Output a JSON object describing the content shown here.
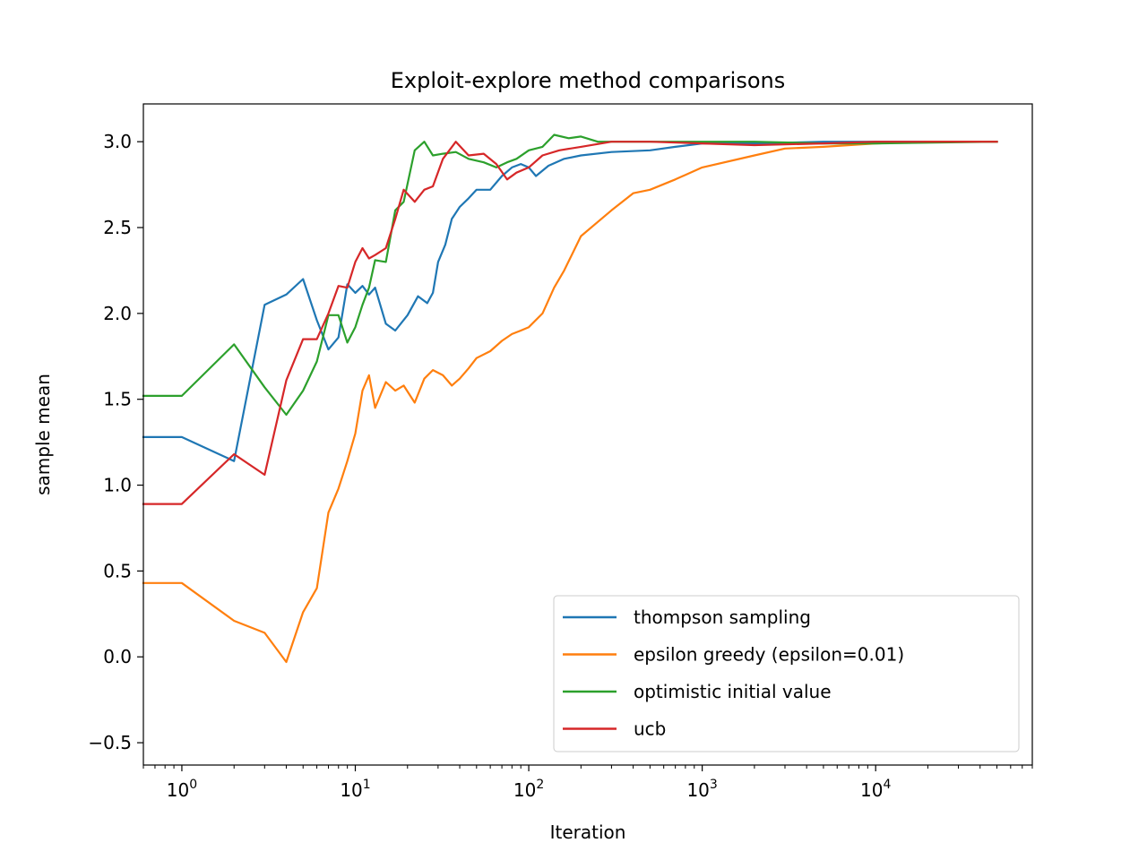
{
  "chart_data": {
    "type": "line",
    "title": "Exploit-explore method comparisons",
    "xlabel": "Iteration",
    "ylabel": "sample mean",
    "x_scale": "log",
    "xlim": [
      0.6,
      80000
    ],
    "ylim": [
      -0.63,
      3.22
    ],
    "x_ticks": [
      {
        "value": 1,
        "base": "10",
        "exp": "0"
      },
      {
        "value": 10,
        "base": "10",
        "exp": "1"
      },
      {
        "value": 100,
        "base": "10",
        "exp": "2"
      },
      {
        "value": 1000,
        "base": "10",
        "exp": "3"
      },
      {
        "value": 10000,
        "base": "10",
        "exp": "4"
      }
    ],
    "y_ticks": [
      {
        "value": -0.5,
        "label": "−0.5"
      },
      {
        "value": 0.0,
        "label": "0.0"
      },
      {
        "value": 0.5,
        "label": "0.5"
      },
      {
        "value": 1.0,
        "label": "1.0"
      },
      {
        "value": 1.5,
        "label": "1.5"
      },
      {
        "value": 2.0,
        "label": "2.0"
      },
      {
        "value": 2.5,
        "label": "2.5"
      },
      {
        "value": 3.0,
        "label": "3.0"
      }
    ],
    "grid": false,
    "legend_position": "lower right",
    "series": [
      {
        "name": "thompson sampling",
        "color": "#1f77b4",
        "points": [
          [
            0.6,
            1.28
          ],
          [
            1,
            1.28
          ],
          [
            2,
            1.14
          ],
          [
            3,
            2.05
          ],
          [
            4,
            2.11
          ],
          [
            5,
            2.2
          ],
          [
            6,
            1.96
          ],
          [
            7,
            1.79
          ],
          [
            8,
            1.86
          ],
          [
            9,
            2.17
          ],
          [
            10,
            2.12
          ],
          [
            11,
            2.16
          ],
          [
            12,
            2.11
          ],
          [
            13,
            2.15
          ],
          [
            15,
            1.94
          ],
          [
            17,
            1.9
          ],
          [
            20,
            1.99
          ],
          [
            23,
            2.1
          ],
          [
            26,
            2.06
          ],
          [
            28,
            2.12
          ],
          [
            30,
            2.3
          ],
          [
            33,
            2.4
          ],
          [
            36,
            2.55
          ],
          [
            40,
            2.62
          ],
          [
            45,
            2.67
          ],
          [
            50,
            2.72
          ],
          [
            60,
            2.72
          ],
          [
            70,
            2.8
          ],
          [
            80,
            2.85
          ],
          [
            90,
            2.87
          ],
          [
            100,
            2.85
          ],
          [
            110,
            2.8
          ],
          [
            130,
            2.86
          ],
          [
            160,
            2.9
          ],
          [
            200,
            2.92
          ],
          [
            300,
            2.94
          ],
          [
            500,
            2.95
          ],
          [
            700,
            2.97
          ],
          [
            1000,
            2.99
          ],
          [
            2000,
            2.99
          ],
          [
            5000,
            3.0
          ],
          [
            10000,
            3.0
          ],
          [
            50000,
            3.0
          ]
        ]
      },
      {
        "name": "epsilon greedy (epsilon=0.01)",
        "color": "#ff7f0e",
        "points": [
          [
            0.6,
            0.43
          ],
          [
            1,
            0.43
          ],
          [
            2,
            0.21
          ],
          [
            3,
            0.14
          ],
          [
            4,
            -0.03
          ],
          [
            5,
            0.26
          ],
          [
            6,
            0.4
          ],
          [
            7,
            0.84
          ],
          [
            8,
            0.98
          ],
          [
            9,
            1.14
          ],
          [
            10,
            1.3
          ],
          [
            11,
            1.55
          ],
          [
            12,
            1.64
          ],
          [
            13,
            1.45
          ],
          [
            15,
            1.6
          ],
          [
            17,
            1.55
          ],
          [
            19,
            1.58
          ],
          [
            22,
            1.48
          ],
          [
            25,
            1.62
          ],
          [
            28,
            1.67
          ],
          [
            32,
            1.64
          ],
          [
            36,
            1.58
          ],
          [
            40,
            1.62
          ],
          [
            45,
            1.68
          ],
          [
            50,
            1.74
          ],
          [
            60,
            1.78
          ],
          [
            70,
            1.84
          ],
          [
            80,
            1.88
          ],
          [
            90,
            1.9
          ],
          [
            100,
            1.92
          ],
          [
            120,
            2.0
          ],
          [
            140,
            2.15
          ],
          [
            160,
            2.25
          ],
          [
            200,
            2.45
          ],
          [
            300,
            2.6
          ],
          [
            400,
            2.7
          ],
          [
            500,
            2.72
          ],
          [
            700,
            2.78
          ],
          [
            1000,
            2.85
          ],
          [
            2000,
            2.92
          ],
          [
            3000,
            2.96
          ],
          [
            5000,
            2.97
          ],
          [
            10000,
            2.99
          ],
          [
            20000,
            3.0
          ],
          [
            50000,
            3.0
          ]
        ]
      },
      {
        "name": "optimistic initial value",
        "color": "#2ca02c",
        "points": [
          [
            0.6,
            1.52
          ],
          [
            1,
            1.52
          ],
          [
            2,
            1.82
          ],
          [
            3,
            1.57
          ],
          [
            4,
            1.41
          ],
          [
            5,
            1.55
          ],
          [
            6,
            1.72
          ],
          [
            7,
            1.99
          ],
          [
            8,
            1.99
          ],
          [
            9,
            1.83
          ],
          [
            10,
            1.92
          ],
          [
            11,
            2.05
          ],
          [
            12,
            2.15
          ],
          [
            13,
            2.31
          ],
          [
            15,
            2.3
          ],
          [
            17,
            2.6
          ],
          [
            19,
            2.65
          ],
          [
            22,
            2.95
          ],
          [
            25,
            3.0
          ],
          [
            28,
            2.92
          ],
          [
            32,
            2.93
          ],
          [
            38,
            2.94
          ],
          [
            45,
            2.9
          ],
          [
            55,
            2.88
          ],
          [
            65,
            2.85
          ],
          [
            75,
            2.88
          ],
          [
            85,
            2.9
          ],
          [
            100,
            2.95
          ],
          [
            120,
            2.97
          ],
          [
            140,
            3.04
          ],
          [
            170,
            3.02
          ],
          [
            200,
            3.03
          ],
          [
            250,
            3.0
          ],
          [
            400,
            3.0
          ],
          [
            700,
            3.0
          ],
          [
            1000,
            3.0
          ],
          [
            2000,
            3.0
          ],
          [
            5000,
            2.99
          ],
          [
            10000,
            2.99
          ],
          [
            50000,
            3.0
          ]
        ]
      },
      {
        "name": "ucb",
        "color": "#d62728",
        "points": [
          [
            0.6,
            0.89
          ],
          [
            1,
            0.89
          ],
          [
            2,
            1.18
          ],
          [
            3,
            1.06
          ],
          [
            4,
            1.61
          ],
          [
            5,
            1.85
          ],
          [
            6,
            1.85
          ],
          [
            7,
            2.0
          ],
          [
            8,
            2.16
          ],
          [
            9,
            2.15
          ],
          [
            10,
            2.3
          ],
          [
            11,
            2.38
          ],
          [
            12,
            2.32
          ],
          [
            13,
            2.34
          ],
          [
            15,
            2.38
          ],
          [
            17,
            2.55
          ],
          [
            19,
            2.72
          ],
          [
            22,
            2.65
          ],
          [
            25,
            2.72
          ],
          [
            28,
            2.74
          ],
          [
            32,
            2.9
          ],
          [
            38,
            3.0
          ],
          [
            45,
            2.92
          ],
          [
            55,
            2.93
          ],
          [
            65,
            2.87
          ],
          [
            75,
            2.78
          ],
          [
            85,
            2.82
          ],
          [
            100,
            2.85
          ],
          [
            120,
            2.92
          ],
          [
            150,
            2.95
          ],
          [
            200,
            2.97
          ],
          [
            300,
            3.0
          ],
          [
            500,
            3.0
          ],
          [
            1000,
            2.99
          ],
          [
            2000,
            2.98
          ],
          [
            5000,
            2.99
          ],
          [
            10000,
            3.0
          ],
          [
            50000,
            3.0
          ]
        ]
      }
    ]
  }
}
